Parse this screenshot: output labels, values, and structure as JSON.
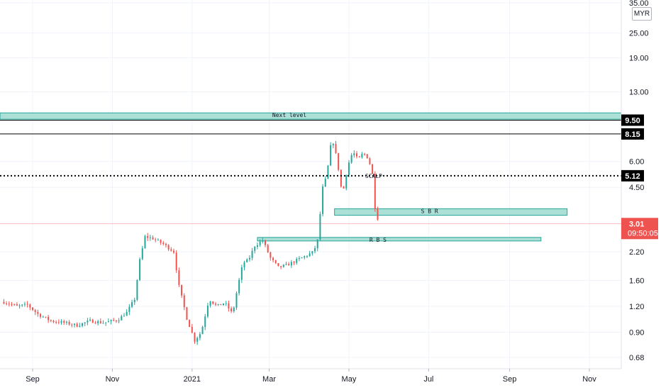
{
  "currency": "MYR",
  "colors": {
    "up": "#26a69a",
    "down": "#ef5350",
    "zone_fill": "#9ed9cf",
    "zone_stroke": "#26a69a",
    "badge": "#000000",
    "price_badge": "#ef5350"
  },
  "chart_data": {
    "type": "candlestick",
    "y_scale": "log",
    "ylim": [
      0.6,
      38
    ],
    "y_ticks": [
      {
        "value": 35.0,
        "label": "35.00"
      },
      {
        "value": 25.0,
        "label": "25.00"
      },
      {
        "value": 19.0,
        "label": "19.00"
      },
      {
        "value": 13.0,
        "label": "13.00"
      },
      {
        "value": 6.0,
        "label": "6.00"
      },
      {
        "value": 4.5,
        "label": "4.50"
      },
      {
        "value": 2.2,
        "label": "2.20"
      },
      {
        "value": 1.6,
        "label": "1.60"
      },
      {
        "value": 1.2,
        "label": "1.20"
      },
      {
        "value": 0.9,
        "label": "0.90"
      },
      {
        "value": 0.68,
        "label": "0.68"
      }
    ],
    "x_ticks": [
      {
        "date": "2020-09-01",
        "label": "Sep"
      },
      {
        "date": "2020-11-01",
        "label": "Nov"
      },
      {
        "date": "2021-01-01",
        "label": "2021"
      },
      {
        "date": "2021-03-01",
        "label": "Mar"
      },
      {
        "date": "2021-05-01",
        "label": "May"
      },
      {
        "date": "2021-07-01",
        "label": "Jul"
      },
      {
        "date": "2021-09-01",
        "label": "Sep"
      },
      {
        "date": "2021-11-01",
        "label": "Nov"
      }
    ],
    "x_range": [
      "2020-08-10",
      "2021-11-25"
    ],
    "price_path": [
      [
        "2020-08-10",
        1.26
      ],
      [
        "2020-08-20",
        1.2
      ],
      [
        "2020-08-28",
        1.22
      ],
      [
        "2020-09-05",
        1.1
      ],
      [
        "2020-09-15",
        1.02
      ],
      [
        "2020-09-25",
        1.0
      ],
      [
        "2020-10-05",
        0.97
      ],
      [
        "2020-10-15",
        1.02
      ],
      [
        "2020-10-25",
        1.0
      ],
      [
        "2020-11-05",
        1.03
      ],
      [
        "2020-11-12",
        1.12
      ],
      [
        "2020-11-18",
        1.3
      ],
      [
        "2020-11-22",
        2.0
      ],
      [
        "2020-11-26",
        2.6
      ],
      [
        "2020-12-02",
        2.55
      ],
      [
        "2020-12-10",
        2.4
      ],
      [
        "2020-12-18",
        2.2
      ],
      [
        "2020-12-22",
        1.5
      ],
      [
        "2020-12-28",
        1.05
      ],
      [
        "2021-01-03",
        0.82
      ],
      [
        "2021-01-08",
        0.9
      ],
      [
        "2021-01-14",
        1.3
      ],
      [
        "2021-01-20",
        1.2
      ],
      [
        "2021-01-26",
        1.25
      ],
      [
        "2021-02-01",
        1.1
      ],
      [
        "2021-02-05",
        1.5
      ],
      [
        "2021-02-09",
        1.95
      ],
      [
        "2021-02-13",
        2.0
      ],
      [
        "2021-02-18",
        2.35
      ],
      [
        "2021-02-24",
        2.5
      ],
      [
        "2021-03-02",
        2.05
      ],
      [
        "2021-03-08",
        1.85
      ],
      [
        "2021-03-15",
        1.9
      ],
      [
        "2021-03-22",
        2.0
      ],
      [
        "2021-03-29",
        2.1
      ],
      [
        "2021-04-04",
        2.2
      ],
      [
        "2021-04-08",
        2.6
      ],
      [
        "2021-04-10",
        4.3
      ],
      [
        "2021-04-14",
        5.1
      ],
      [
        "2021-04-18",
        7.9
      ],
      [
        "2021-04-22",
        6.1
      ],
      [
        "2021-04-26",
        4.1
      ],
      [
        "2021-04-30",
        5.7
      ],
      [
        "2021-05-04",
        6.7
      ],
      [
        "2021-05-08",
        6.1
      ],
      [
        "2021-05-12",
        6.6
      ],
      [
        "2021-05-16",
        6.2
      ],
      [
        "2021-05-19",
        5.2
      ],
      [
        "2021-05-21",
        3.6
      ],
      [
        "2021-05-24",
        3.01
      ]
    ],
    "current_price": 3.01,
    "current_price_label": "3.01",
    "countdown_label": "09:50:05",
    "levels": [
      {
        "price": 9.5,
        "label": "9.50",
        "style": "solid"
      },
      {
        "price": 8.15,
        "label": "8.15",
        "style": "solid"
      },
      {
        "price": 5.12,
        "label": "5.12",
        "style": "dotted"
      }
    ],
    "zones": [
      {
        "label": "Next level",
        "from": "2020-08-01",
        "to": "2021-11-30",
        "top": 10.3,
        "bottom": 9.6
      },
      {
        "label": "S B R",
        "from": "2021-04-20",
        "to": "2021-10-15",
        "top": 3.55,
        "bottom": 3.3
      },
      {
        "label": "R B S",
        "from": "2021-02-20",
        "to": "2021-09-25",
        "top": 2.58,
        "bottom": 2.48
      }
    ],
    "annotation": {
      "label": "SCALP",
      "date": "2021-05-20",
      "price": 5.0
    }
  }
}
